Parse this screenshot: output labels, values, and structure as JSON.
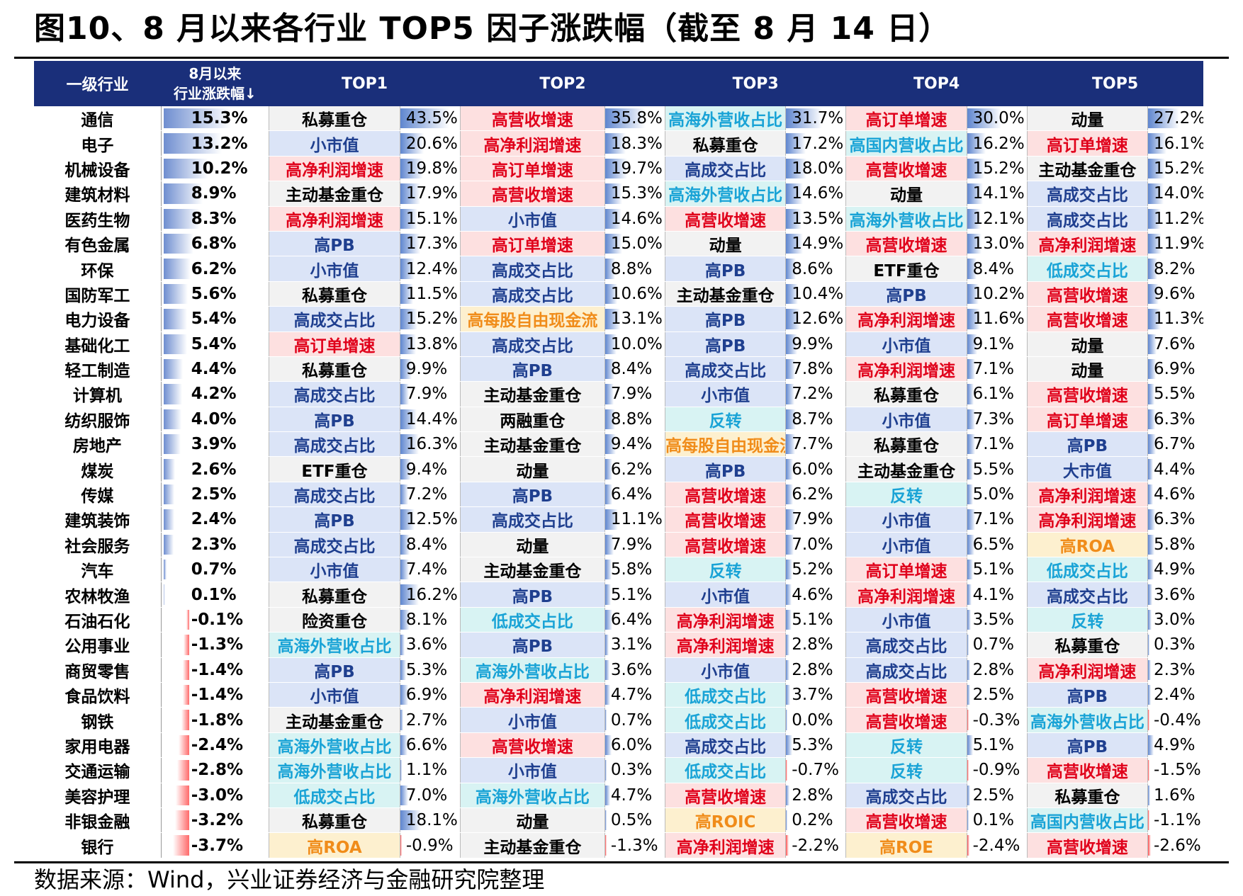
{
  "title": "图10、8 月以来各行业 TOP5 因子涨跌幅（截至 8 月 14 日）",
  "source": "数据来源：Wind，兴业证券经济与金融研究院整理",
  "colors": {
    "header_bg": "#1a2f7a",
    "blue_factor_bg": "#dbe4f7",
    "blue_factor_text": "#1f3f8f",
    "red_factor_bg": "#fde0e0",
    "red_factor_text": "#e0001a",
    "cyan_factor_bg": "#d8f3f3",
    "cyan_factor_text": "#19a3d6",
    "orange_factor_bg": "#fdf0cf",
    "orange_factor_text": "#f08c1a",
    "gray_factor_bg": "#f2f2f2",
    "gray_factor_text": "#000000"
  },
  "factor_styles": {
    "私募重仓": "gray",
    "主动基金重仓": "gray",
    "两融重仓": "gray",
    "ETF重仓": "gray",
    "险资重仓": "gray",
    "动量": "gray",
    "小市值": "blue",
    "高PB": "blue",
    "高成交占比": "blue",
    "大市值": "blue",
    "高营收增速": "red",
    "高净利润增速": "red",
    "高订单增速": "red",
    "高海外营收占比": "cyan",
    "高国内营收占比": "cyan",
    "反转": "cyan",
    "低成交占比": "cyan",
    "高每股自由现金流": "orange",
    "高ROA": "orange",
    "高ROIC": "orange",
    "高ROE": "orange"
  },
  "header": {
    "industry": "一级行业",
    "return_line1": "8月以来",
    "return_line2": "行业涨跌幅↓",
    "top1": "TOP1",
    "top2": "TOP2",
    "top3": "TOP3",
    "top4": "TOP4",
    "top5": "TOP5"
  },
  "rows": [
    {
      "industry": "通信",
      "ret": "15.3%",
      "t1f": "私募重仓",
      "t1p": "43.5%",
      "t2f": "高营收增速",
      "t2p": "35.8%",
      "t3f": "高海外营收占比",
      "t3p": "31.7%",
      "t4f": "高订单增速",
      "t4p": "30.0%",
      "t5f": "动量",
      "t5p": "27.2%"
    },
    {
      "industry": "电子",
      "ret": "13.2%",
      "t1f": "小市值",
      "t1p": "20.6%",
      "t2f": "高净利润增速",
      "t2p": "18.3%",
      "t3f": "私募重仓",
      "t3p": "17.2%",
      "t4f": "高国内营收占比",
      "t4p": "16.2%",
      "t5f": "高订单增速",
      "t5p": "16.1%"
    },
    {
      "industry": "机械设备",
      "ret": "10.2%",
      "t1f": "高净利润增速",
      "t1p": "19.8%",
      "t2f": "高订单增速",
      "t2p": "19.7%",
      "t3f": "高成交占比",
      "t3p": "18.0%",
      "t4f": "高营收增速",
      "t4p": "15.2%",
      "t5f": "主动基金重仓",
      "t5p": "15.2%"
    },
    {
      "industry": "建筑材料",
      "ret": "8.9%",
      "t1f": "主动基金重仓",
      "t1p": "17.9%",
      "t2f": "高营收增速",
      "t2p": "15.3%",
      "t3f": "高海外营收占比",
      "t3p": "14.6%",
      "t4f": "动量",
      "t4p": "14.1%",
      "t5f": "高成交占比",
      "t5p": "14.0%"
    },
    {
      "industry": "医药生物",
      "ret": "8.3%",
      "t1f": "高净利润增速",
      "t1p": "15.1%",
      "t2f": "小市值",
      "t2p": "14.6%",
      "t3f": "高营收增速",
      "t3p": "13.5%",
      "t4f": "高海外营收占比",
      "t4p": "12.1%",
      "t5f": "高成交占比",
      "t5p": "11.2%"
    },
    {
      "industry": "有色金属",
      "ret": "6.8%",
      "t1f": "高PB",
      "t1p": "17.3%",
      "t2f": "高订单增速",
      "t2p": "15.0%",
      "t3f": "动量",
      "t3p": "14.9%",
      "t4f": "高营收增速",
      "t4p": "13.0%",
      "t5f": "高净利润增速",
      "t5p": "11.9%"
    },
    {
      "industry": "环保",
      "ret": "6.2%",
      "t1f": "小市值",
      "t1p": "12.4%",
      "t2f": "高成交占比",
      "t2p": "8.8%",
      "t3f": "高PB",
      "t3p": "8.6%",
      "t4f": "ETF重仓",
      "t4p": "8.4%",
      "t5f": "低成交占比",
      "t5p": "8.2%"
    },
    {
      "industry": "国防军工",
      "ret": "5.6%",
      "t1f": "私募重仓",
      "t1p": "11.5%",
      "t2f": "高成交占比",
      "t2p": "10.6%",
      "t3f": "主动基金重仓",
      "t3p": "10.4%",
      "t4f": "高PB",
      "t4p": "10.2%",
      "t5f": "高营收增速",
      "t5p": "9.6%"
    },
    {
      "industry": "电力设备",
      "ret": "5.4%",
      "t1f": "高成交占比",
      "t1p": "15.2%",
      "t2f": "高每股自由现金流",
      "t2p": "13.1%",
      "t3f": "高PB",
      "t3p": "12.6%",
      "t4f": "高净利润增速",
      "t4p": "11.6%",
      "t5f": "高营收增速",
      "t5p": "11.3%"
    },
    {
      "industry": "基础化工",
      "ret": "5.4%",
      "t1f": "高订单增速",
      "t1p": "13.8%",
      "t2f": "高成交占比",
      "t2p": "10.0%",
      "t3f": "高PB",
      "t3p": "9.9%",
      "t4f": "小市值",
      "t4p": "9.1%",
      "t5f": "动量",
      "t5p": "7.6%"
    },
    {
      "industry": "轻工制造",
      "ret": "4.4%",
      "t1f": "私募重仓",
      "t1p": "9.9%",
      "t2f": "高PB",
      "t2p": "8.4%",
      "t3f": "高成交占比",
      "t3p": "7.8%",
      "t4f": "高净利润增速",
      "t4p": "7.1%",
      "t5f": "动量",
      "t5p": "6.9%"
    },
    {
      "industry": "计算机",
      "ret": "4.2%",
      "t1f": "高成交占比",
      "t1p": "7.9%",
      "t2f": "主动基金重仓",
      "t2p": "7.9%",
      "t3f": "小市值",
      "t3p": "7.2%",
      "t4f": "私募重仓",
      "t4p": "6.1%",
      "t5f": "高营收增速",
      "t5p": "5.5%"
    },
    {
      "industry": "纺织服饰",
      "ret": "4.0%",
      "t1f": "高PB",
      "t1p": "14.4%",
      "t2f": "两融重仓",
      "t2p": "8.8%",
      "t3f": "反转",
      "t3p": "8.7%",
      "t4f": "小市值",
      "t4p": "7.3%",
      "t5f": "高订单增速",
      "t5p": "6.3%"
    },
    {
      "industry": "房地产",
      "ret": "3.9%",
      "t1f": "高成交占比",
      "t1p": "16.3%",
      "t2f": "主动基金重仓",
      "t2p": "9.4%",
      "t3f": "高每股自由现金流",
      "t3p": "7.7%",
      "t4f": "私募重仓",
      "t4p": "7.1%",
      "t5f": "高PB",
      "t5p": "6.7%"
    },
    {
      "industry": "煤炭",
      "ret": "2.6%",
      "t1f": "ETF重仓",
      "t1p": "9.4%",
      "t2f": "动量",
      "t2p": "6.2%",
      "t3f": "高PB",
      "t3p": "6.0%",
      "t4f": "主动基金重仓",
      "t4p": "5.5%",
      "t5f": "大市值",
      "t5p": "4.4%"
    },
    {
      "industry": "传媒",
      "ret": "2.5%",
      "t1f": "高成交占比",
      "t1p": "7.2%",
      "t2f": "高PB",
      "t2p": "6.4%",
      "t3f": "高营收增速",
      "t3p": "6.2%",
      "t4f": "反转",
      "t4p": "5.0%",
      "t5f": "高净利润增速",
      "t5p": "4.6%"
    },
    {
      "industry": "建筑装饰",
      "ret": "2.4%",
      "t1f": "高PB",
      "t1p": "12.5%",
      "t2f": "高成交占比",
      "t2p": "11.1%",
      "t3f": "高营收增速",
      "t3p": "7.9%",
      "t4f": "小市值",
      "t4p": "7.1%",
      "t5f": "高净利润增速",
      "t5p": "6.3%"
    },
    {
      "industry": "社会服务",
      "ret": "2.3%",
      "t1f": "高成交占比",
      "t1p": "8.4%",
      "t2f": "动量",
      "t2p": "7.9%",
      "t3f": "高营收增速",
      "t3p": "7.0%",
      "t4f": "小市值",
      "t4p": "6.5%",
      "t5f": "高ROA",
      "t5p": "5.8%"
    },
    {
      "industry": "汽车",
      "ret": "0.7%",
      "t1f": "小市值",
      "t1p": "7.4%",
      "t2f": "主动基金重仓",
      "t2p": "5.8%",
      "t3f": "反转",
      "t3p": "5.2%",
      "t4f": "高订单增速",
      "t4p": "5.1%",
      "t5f": "低成交占比",
      "t5p": "4.9%"
    },
    {
      "industry": "农林牧渔",
      "ret": "0.1%",
      "t1f": "私募重仓",
      "t1p": "16.2%",
      "t2f": "高PB",
      "t2p": "5.1%",
      "t3f": "小市值",
      "t3p": "4.6%",
      "t4f": "高净利润增速",
      "t4p": "4.1%",
      "t5f": "高成交占比",
      "t5p": "3.6%"
    },
    {
      "industry": "石油石化",
      "ret": "-0.1%",
      "t1f": "险资重仓",
      "t1p": "8.1%",
      "t2f": "低成交占比",
      "t2p": "6.4%",
      "t3f": "高净利润增速",
      "t3p": "5.1%",
      "t4f": "小市值",
      "t4p": "3.5%",
      "t5f": "反转",
      "t5p": "3.0%"
    },
    {
      "industry": "公用事业",
      "ret": "-1.3%",
      "t1f": "高海外营收占比",
      "t1p": "3.6%",
      "t2f": "高PB",
      "t2p": "3.1%",
      "t3f": "高净利润增速",
      "t3p": "2.8%",
      "t4f": "高成交占比",
      "t4p": "0.7%",
      "t5f": "私募重仓",
      "t5p": "0.3%"
    },
    {
      "industry": "商贸零售",
      "ret": "-1.4%",
      "t1f": "高PB",
      "t1p": "5.3%",
      "t2f": "高海外营收占比",
      "t2p": "3.6%",
      "t3f": "小市值",
      "t3p": "2.8%",
      "t4f": "高成交占比",
      "t4p": "2.8%",
      "t5f": "高净利润增速",
      "t5p": "2.3%"
    },
    {
      "industry": "食品饮料",
      "ret": "-1.4%",
      "t1f": "小市值",
      "t1p": "6.9%",
      "t2f": "高净利润增速",
      "t2p": "4.7%",
      "t3f": "低成交占比",
      "t3p": "3.7%",
      "t4f": "高营收增速",
      "t4p": "2.5%",
      "t5f": "高PB",
      "t5p": "2.4%"
    },
    {
      "industry": "钢铁",
      "ret": "-1.8%",
      "t1f": "主动基金重仓",
      "t1p": "2.7%",
      "t2f": "小市值",
      "t2p": "0.7%",
      "t3f": "低成交占比",
      "t3p": "0.0%",
      "t4f": "高营收增速",
      "t4p": "-0.3%",
      "t5f": "高海外营收占比",
      "t5p": "-0.4%"
    },
    {
      "industry": "家用电器",
      "ret": "-2.4%",
      "t1f": "高海外营收占比",
      "t1p": "6.6%",
      "t2f": "高营收增速",
      "t2p": "6.0%",
      "t3f": "高成交占比",
      "t3p": "5.3%",
      "t4f": "反转",
      "t4p": "5.1%",
      "t5f": "高PB",
      "t5p": "4.9%"
    },
    {
      "industry": "交通运输",
      "ret": "-2.8%",
      "t1f": "高海外营收占比",
      "t1p": "1.1%",
      "t2f": "小市值",
      "t2p": "0.3%",
      "t3f": "低成交占比",
      "t3p": "-0.7%",
      "t4f": "反转",
      "t4p": "-0.9%",
      "t5f": "高营收增速",
      "t5p": "-1.5%"
    },
    {
      "industry": "美容护理",
      "ret": "-3.0%",
      "t1f": "低成交占比",
      "t1p": "7.0%",
      "t2f": "高海外营收占比",
      "t2p": "4.7%",
      "t3f": "高营收增速",
      "t3p": "2.8%",
      "t4f": "高成交占比",
      "t4p": "2.5%",
      "t5f": "私募重仓",
      "t5p": "1.6%"
    },
    {
      "industry": "非银金融",
      "ret": "-3.2%",
      "t1f": "私募重仓",
      "t1p": "18.1%",
      "t2f": "动量",
      "t2p": "0.5%",
      "t3f": "高ROIC",
      "t3p": "0.2%",
      "t4f": "高营收增速",
      "t4p": "0.1%",
      "t5f": "高国内营收占比",
      "t5p": "-1.1%"
    },
    {
      "industry": "银行",
      "ret": "-3.7%",
      "t1f": "高ROA",
      "t1p": "-0.9%",
      "t2f": "主动基金重仓",
      "t2p": "-1.3%",
      "t3f": "高净利润增速",
      "t3p": "-2.2%",
      "t4f": "高ROE",
      "t4p": "-2.4%",
      "t5f": "高营收增速",
      "t5p": "-2.6%"
    }
  ]
}
